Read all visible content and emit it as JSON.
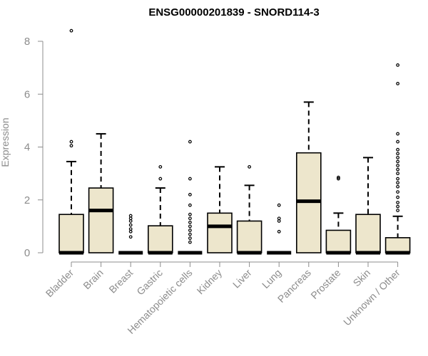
{
  "chart_data": {
    "type": "boxplot",
    "title": "ENSG00000201839 - SNORD114-3",
    "xlabel": "",
    "ylabel": "Expression",
    "ylim": [
      0,
      8.5
    ],
    "yticks": [
      0,
      2,
      4,
      6,
      8
    ],
    "grid": false,
    "legend": "none",
    "colors": {
      "box_fill": "#ede6cc",
      "box_stroke": "#000000",
      "axis_text": "#8c8c8c",
      "title": "#000000"
    },
    "categories": [
      "Bladder",
      "Brain",
      "Breast",
      "Gastric",
      "Hematopoietic cells",
      "Kidney",
      "Liver",
      "Lung",
      "Pancreas",
      "Prostate",
      "Skin",
      "Unknown / Other"
    ],
    "boxes": [
      {
        "category": "Bladder",
        "min": 0,
        "q1": 0,
        "median": 0,
        "q3": 1.45,
        "max": 3.45,
        "outliers": [
          4.05,
          4.2,
          8.4
        ]
      },
      {
        "category": "Brain",
        "min": 0,
        "q1": 0,
        "median": 1.6,
        "q3": 2.45,
        "max": 4.5,
        "outliers": []
      },
      {
        "category": "Breast",
        "min": 0,
        "q1": 0,
        "median": 0,
        "q3": 0,
        "max": 0,
        "outliers": [
          0.6,
          0.8,
          0.9,
          1.05,
          1.2,
          1.3,
          1.4
        ]
      },
      {
        "category": "Gastric",
        "min": 0,
        "q1": 0,
        "median": 0,
        "q3": 1.02,
        "max": 2.45,
        "outliers": [
          2.8,
          3.25
        ]
      },
      {
        "category": "Hematopoietic cells",
        "min": 0,
        "q1": 0,
        "median": 0,
        "q3": 0,
        "max": 0,
        "outliers": [
          0.4,
          0.55,
          0.7,
          0.85,
          1.0,
          1.15,
          1.3,
          1.45,
          1.8,
          2.2,
          2.8,
          4.2
        ]
      },
      {
        "category": "Kidney",
        "min": 0,
        "q1": 0,
        "median": 1.0,
        "q3": 1.5,
        "max": 3.25,
        "outliers": []
      },
      {
        "category": "Liver",
        "min": 0,
        "q1": 0,
        "median": 0,
        "q3": 1.2,
        "max": 2.55,
        "outliers": [
          3.25
        ]
      },
      {
        "category": "Lung",
        "min": 0,
        "q1": 0,
        "median": 0,
        "q3": 0,
        "max": 0,
        "outliers": [
          0.8,
          1.2,
          1.3,
          1.8
        ]
      },
      {
        "category": "Pancreas",
        "min": 0,
        "q1": 0,
        "median": 1.95,
        "q3": 3.78,
        "max": 5.7,
        "outliers": []
      },
      {
        "category": "Prostate",
        "min": 0,
        "q1": 0,
        "median": 0,
        "q3": 0.85,
        "max": 1.5,
        "outliers": [
          2.8,
          2.85
        ]
      },
      {
        "category": "Skin",
        "min": 0,
        "q1": 0,
        "median": 0,
        "q3": 1.45,
        "max": 3.6,
        "outliers": []
      },
      {
        "category": "Unknown / Other",
        "min": 0,
        "q1": 0,
        "median": 0,
        "q3": 0.57,
        "max": 1.38,
        "outliers": [
          1.6,
          1.75,
          1.9,
          2.1,
          2.3,
          2.5,
          2.65,
          2.8,
          3.0,
          3.15,
          3.3,
          3.45,
          3.6,
          3.75,
          3.9,
          4.2,
          4.5,
          6.4,
          7.1
        ]
      }
    ]
  }
}
